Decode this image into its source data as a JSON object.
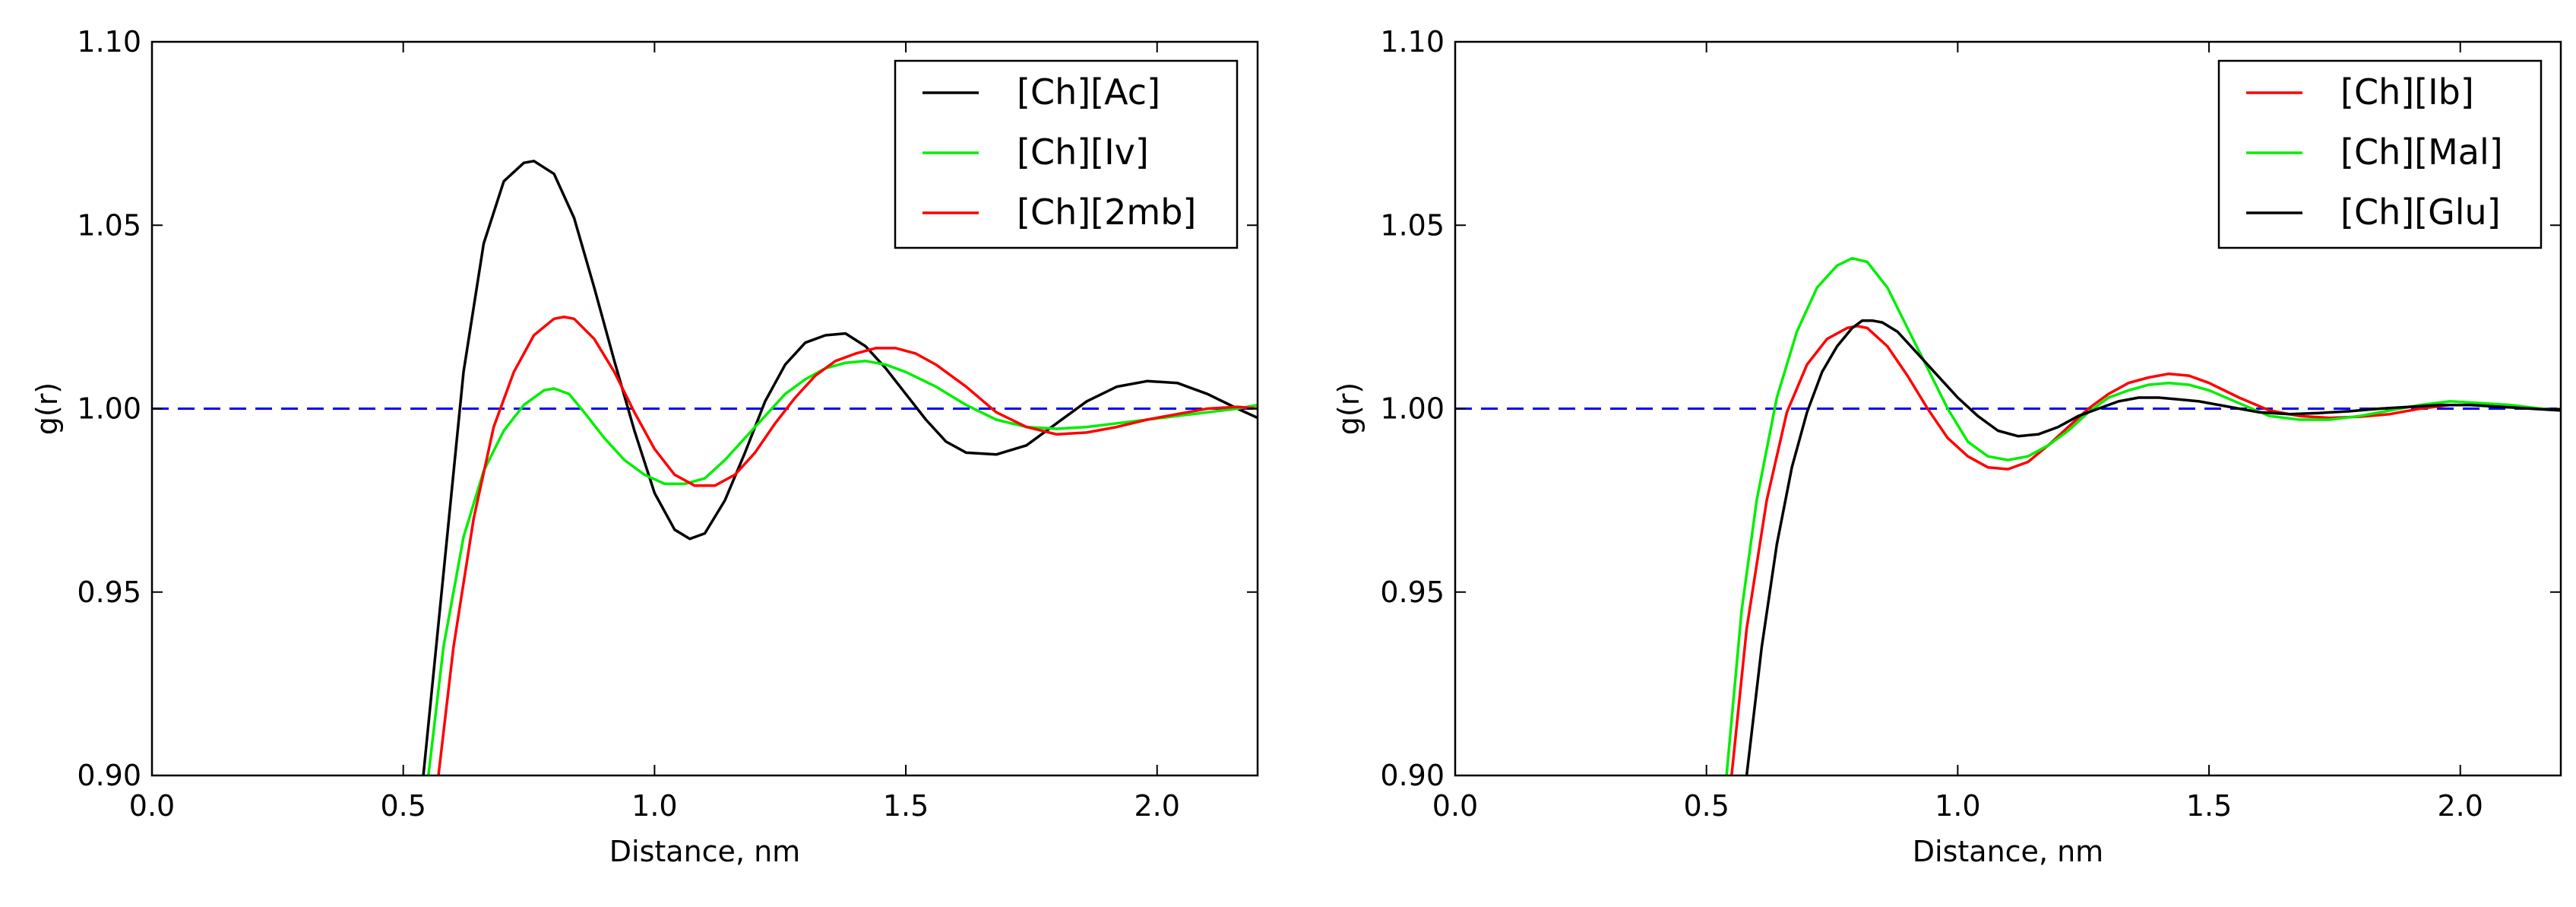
{
  "chart_data": [
    {
      "type": "line",
      "xlabel": "Distance, nm",
      "ylabel": "g(r)",
      "xlim": [
        0.0,
        2.2
      ],
      "ylim": [
        0.9,
        1.1
      ],
      "xticks": [
        0.0,
        0.5,
        1.0,
        1.5,
        2.0
      ],
      "xtick_labels": [
        "0.0",
        "0.5",
        "1.0",
        "1.5",
        "2.0"
      ],
      "yticks": [
        0.9,
        0.95,
        1.0,
        1.05,
        1.1
      ],
      "ytick_labels": [
        "0.90",
        "0.95",
        "1.00",
        "1.05",
        "1.10"
      ],
      "legend_position": "top-right",
      "reference_line": {
        "y": 1.0,
        "style": "dashed",
        "color": "#0000ff"
      },
      "series": [
        {
          "name": "[Ch][Ac]",
          "color": "#000000",
          "x": [
            0.54,
            0.58,
            0.62,
            0.66,
            0.7,
            0.74,
            0.76,
            0.8,
            0.84,
            0.88,
            0.92,
            0.96,
            1.0,
            1.04,
            1.07,
            1.1,
            1.14,
            1.18,
            1.22,
            1.26,
            1.3,
            1.34,
            1.38,
            1.42,
            1.46,
            1.5,
            1.54,
            1.58,
            1.62,
            1.68,
            1.74,
            1.8,
            1.86,
            1.92,
            1.98,
            2.04,
            2.1,
            2.16,
            2.2
          ],
          "y": [
            0.9,
            0.955,
            1.01,
            1.045,
            1.062,
            1.067,
            1.0675,
            1.064,
            1.052,
            1.033,
            1.013,
            0.994,
            0.977,
            0.967,
            0.9645,
            0.966,
            0.975,
            0.988,
            1.002,
            1.012,
            1.018,
            1.02,
            1.0205,
            1.017,
            1.011,
            1.004,
            0.997,
            0.991,
            0.988,
            0.9875,
            0.99,
            0.996,
            1.002,
            1.006,
            1.0075,
            1.007,
            1.004,
            1.0,
            0.9975
          ]
        },
        {
          "name": "[Ch][Iv]",
          "color": "#00ee00",
          "x": [
            0.55,
            0.58,
            0.62,
            0.66,
            0.7,
            0.74,
            0.78,
            0.8,
            0.83,
            0.86,
            0.9,
            0.94,
            0.98,
            1.02,
            1.06,
            1.1,
            1.14,
            1.18,
            1.22,
            1.26,
            1.3,
            1.34,
            1.38,
            1.42,
            1.46,
            1.5,
            1.56,
            1.62,
            1.68,
            1.74,
            1.8,
            1.86,
            1.92,
            1.98,
            2.04,
            2.1,
            2.16,
            2.2
          ],
          "y": [
            0.9,
            0.935,
            0.965,
            0.983,
            0.994,
            1.001,
            1.005,
            1.0055,
            1.004,
            0.999,
            0.992,
            0.986,
            0.982,
            0.9795,
            0.9795,
            0.981,
            0.986,
            0.992,
            0.998,
            1.004,
            1.008,
            1.011,
            1.0125,
            1.013,
            1.012,
            1.01,
            1.006,
            1.001,
            0.997,
            0.995,
            0.9945,
            0.995,
            0.996,
            0.997,
            0.998,
            0.999,
            1.0,
            1.001
          ]
        },
        {
          "name": "[Ch][2mb]",
          "color": "#ff0000",
          "x": [
            0.57,
            0.6,
            0.64,
            0.68,
            0.72,
            0.76,
            0.8,
            0.82,
            0.84,
            0.88,
            0.92,
            0.96,
            1.0,
            1.04,
            1.08,
            1.12,
            1.16,
            1.2,
            1.24,
            1.28,
            1.32,
            1.36,
            1.4,
            1.44,
            1.48,
            1.52,
            1.56,
            1.62,
            1.68,
            1.74,
            1.8,
            1.86,
            1.92,
            1.98,
            2.04,
            2.1,
            2.16,
            2.2
          ],
          "y": [
            0.9,
            0.935,
            0.97,
            0.995,
            1.01,
            1.02,
            1.0245,
            1.025,
            1.0245,
            1.019,
            1.01,
            0.999,
            0.989,
            0.982,
            0.979,
            0.979,
            0.982,
            0.988,
            0.996,
            1.003,
            1.009,
            1.013,
            1.015,
            1.0165,
            1.0165,
            1.015,
            1.012,
            1.006,
            0.999,
            0.995,
            0.993,
            0.9935,
            0.995,
            0.997,
            0.9985,
            1.0,
            1.0005,
            1.0
          ]
        }
      ]
    },
    {
      "type": "line",
      "xlabel": "Distance, nm",
      "ylabel": "g(r)",
      "xlim": [
        0.0,
        2.2
      ],
      "ylim": [
        0.9,
        1.1
      ],
      "xticks": [
        0.0,
        0.5,
        1.0,
        1.5,
        2.0
      ],
      "xtick_labels": [
        "0.0",
        "0.5",
        "1.0",
        "1.5",
        "2.0"
      ],
      "yticks": [
        0.9,
        0.95,
        1.0,
        1.05,
        1.1
      ],
      "ytick_labels": [
        "0.90",
        "0.95",
        "1.00",
        "1.05",
        "1.10"
      ],
      "legend_position": "top-right",
      "reference_line": {
        "y": 1.0,
        "style": "dashed",
        "color": "#0000ff"
      },
      "series": [
        {
          "name": "[Ch][Ib]",
          "color": "#ff0000",
          "x": [
            0.55,
            0.58,
            0.62,
            0.66,
            0.7,
            0.74,
            0.78,
            0.8,
            0.82,
            0.86,
            0.9,
            0.94,
            0.98,
            1.02,
            1.06,
            1.1,
            1.14,
            1.18,
            1.22,
            1.26,
            1.3,
            1.34,
            1.38,
            1.42,
            1.46,
            1.5,
            1.56,
            1.62,
            1.68,
            1.74,
            1.8,
            1.86,
            1.92,
            1.98,
            2.04,
            2.1,
            2.16,
            2.2
          ],
          "y": [
            0.9,
            0.94,
            0.975,
            0.999,
            1.012,
            1.019,
            1.022,
            1.0225,
            1.022,
            1.017,
            1.009,
            1.0,
            0.992,
            0.987,
            0.984,
            0.9835,
            0.9855,
            0.99,
            0.995,
            1.0,
            1.004,
            1.007,
            1.0085,
            1.0095,
            1.009,
            1.007,
            1.003,
            0.9995,
            0.998,
            0.9975,
            0.9978,
            0.9985,
            1.0,
            1.001,
            1.001,
            1.0005,
            1.0,
            0.9995
          ]
        },
        {
          "name": "[Ch][Mal]",
          "color": "#00ee00",
          "x": [
            0.54,
            0.57,
            0.6,
            0.64,
            0.68,
            0.72,
            0.76,
            0.79,
            0.82,
            0.86,
            0.9,
            0.94,
            0.98,
            1.02,
            1.06,
            1.1,
            1.14,
            1.18,
            1.22,
            1.26,
            1.3,
            1.34,
            1.38,
            1.42,
            1.46,
            1.5,
            1.56,
            1.62,
            1.68,
            1.74,
            1.8,
            1.86,
            1.92,
            1.98,
            2.04,
            2.1,
            2.16,
            2.2
          ],
          "y": [
            0.9,
            0.945,
            0.975,
            1.003,
            1.021,
            1.033,
            1.039,
            1.041,
            1.04,
            1.033,
            1.022,
            1.011,
            1.0,
            0.991,
            0.987,
            0.986,
            0.987,
            0.99,
            0.994,
            0.999,
            1.003,
            1.005,
            1.0065,
            1.007,
            1.0065,
            1.005,
            1.0015,
            0.998,
            0.997,
            0.997,
            0.998,
            0.9995,
            1.001,
            1.002,
            1.0015,
            1.001,
            1.0,
            0.9995
          ]
        },
        {
          "name": "[Ch][Glu]",
          "color": "#000000",
          "x": [
            0.58,
            0.61,
            0.64,
            0.67,
            0.7,
            0.73,
            0.76,
            0.79,
            0.81,
            0.83,
            0.85,
            0.88,
            0.92,
            0.96,
            1.0,
            1.04,
            1.08,
            1.12,
            1.16,
            1.2,
            1.24,
            1.28,
            1.32,
            1.36,
            1.4,
            1.44,
            1.48,
            1.54,
            1.6,
            1.66,
            1.72,
            1.78,
            1.84,
            1.9,
            1.96,
            2.02,
            2.08,
            2.14,
            2.2
          ],
          "y": [
            0.9,
            0.935,
            0.963,
            0.984,
            0.999,
            1.01,
            1.017,
            1.022,
            1.024,
            1.024,
            1.0235,
            1.021,
            1.015,
            1.009,
            1.003,
            0.998,
            0.994,
            0.9925,
            0.993,
            0.995,
            0.998,
            1.0,
            1.002,
            1.003,
            1.003,
            1.0025,
            1.002,
            1.0005,
            0.999,
            0.9985,
            0.9988,
            0.9993,
            1.0,
            1.0005,
            1.001,
            1.001,
            1.0005,
            1.0,
            0.9995
          ]
        }
      ]
    }
  ]
}
